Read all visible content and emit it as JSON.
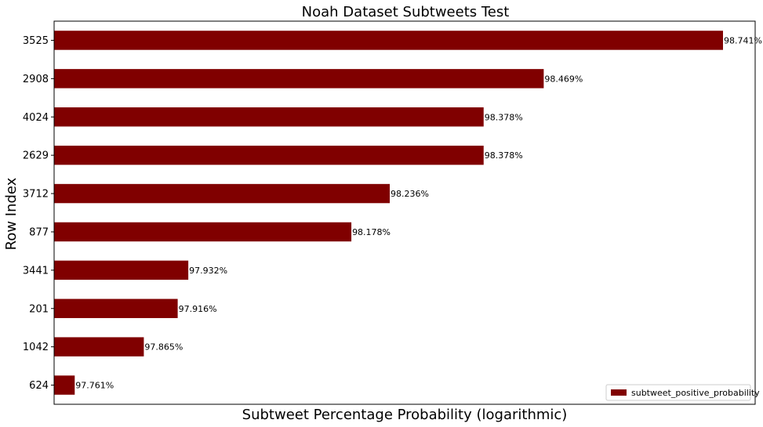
{
  "chart_data": {
    "type": "bar",
    "orientation": "horizontal",
    "title": "Noah Dataset Subtweets Test",
    "xlabel": "Subtweet Percentage Probability (logarithmic)",
    "ylabel": "Row Index",
    "xscale": "log",
    "x_ticks_visible": false,
    "grid": false,
    "legend_position": "bottom-right",
    "categories": [
      "3525",
      "2908",
      "4024",
      "2629",
      "3712",
      "877",
      "3441",
      "201",
      "1042",
      "624"
    ],
    "series": [
      {
        "name": "subtweet_positive_probability",
        "color": "#800000",
        "values": [
          98.741,
          98.469,
          98.378,
          98.378,
          98.236,
          98.178,
          97.932,
          97.916,
          97.865,
          97.761
        ],
        "labels": [
          "98.741%",
          "98.469%",
          "98.378%",
          "98.378%",
          "98.236%",
          "98.178%",
          "97.932%",
          "97.916%",
          "97.865%",
          "97.761%"
        ]
      }
    ],
    "xlim": [
      97.73,
      98.741
    ]
  }
}
